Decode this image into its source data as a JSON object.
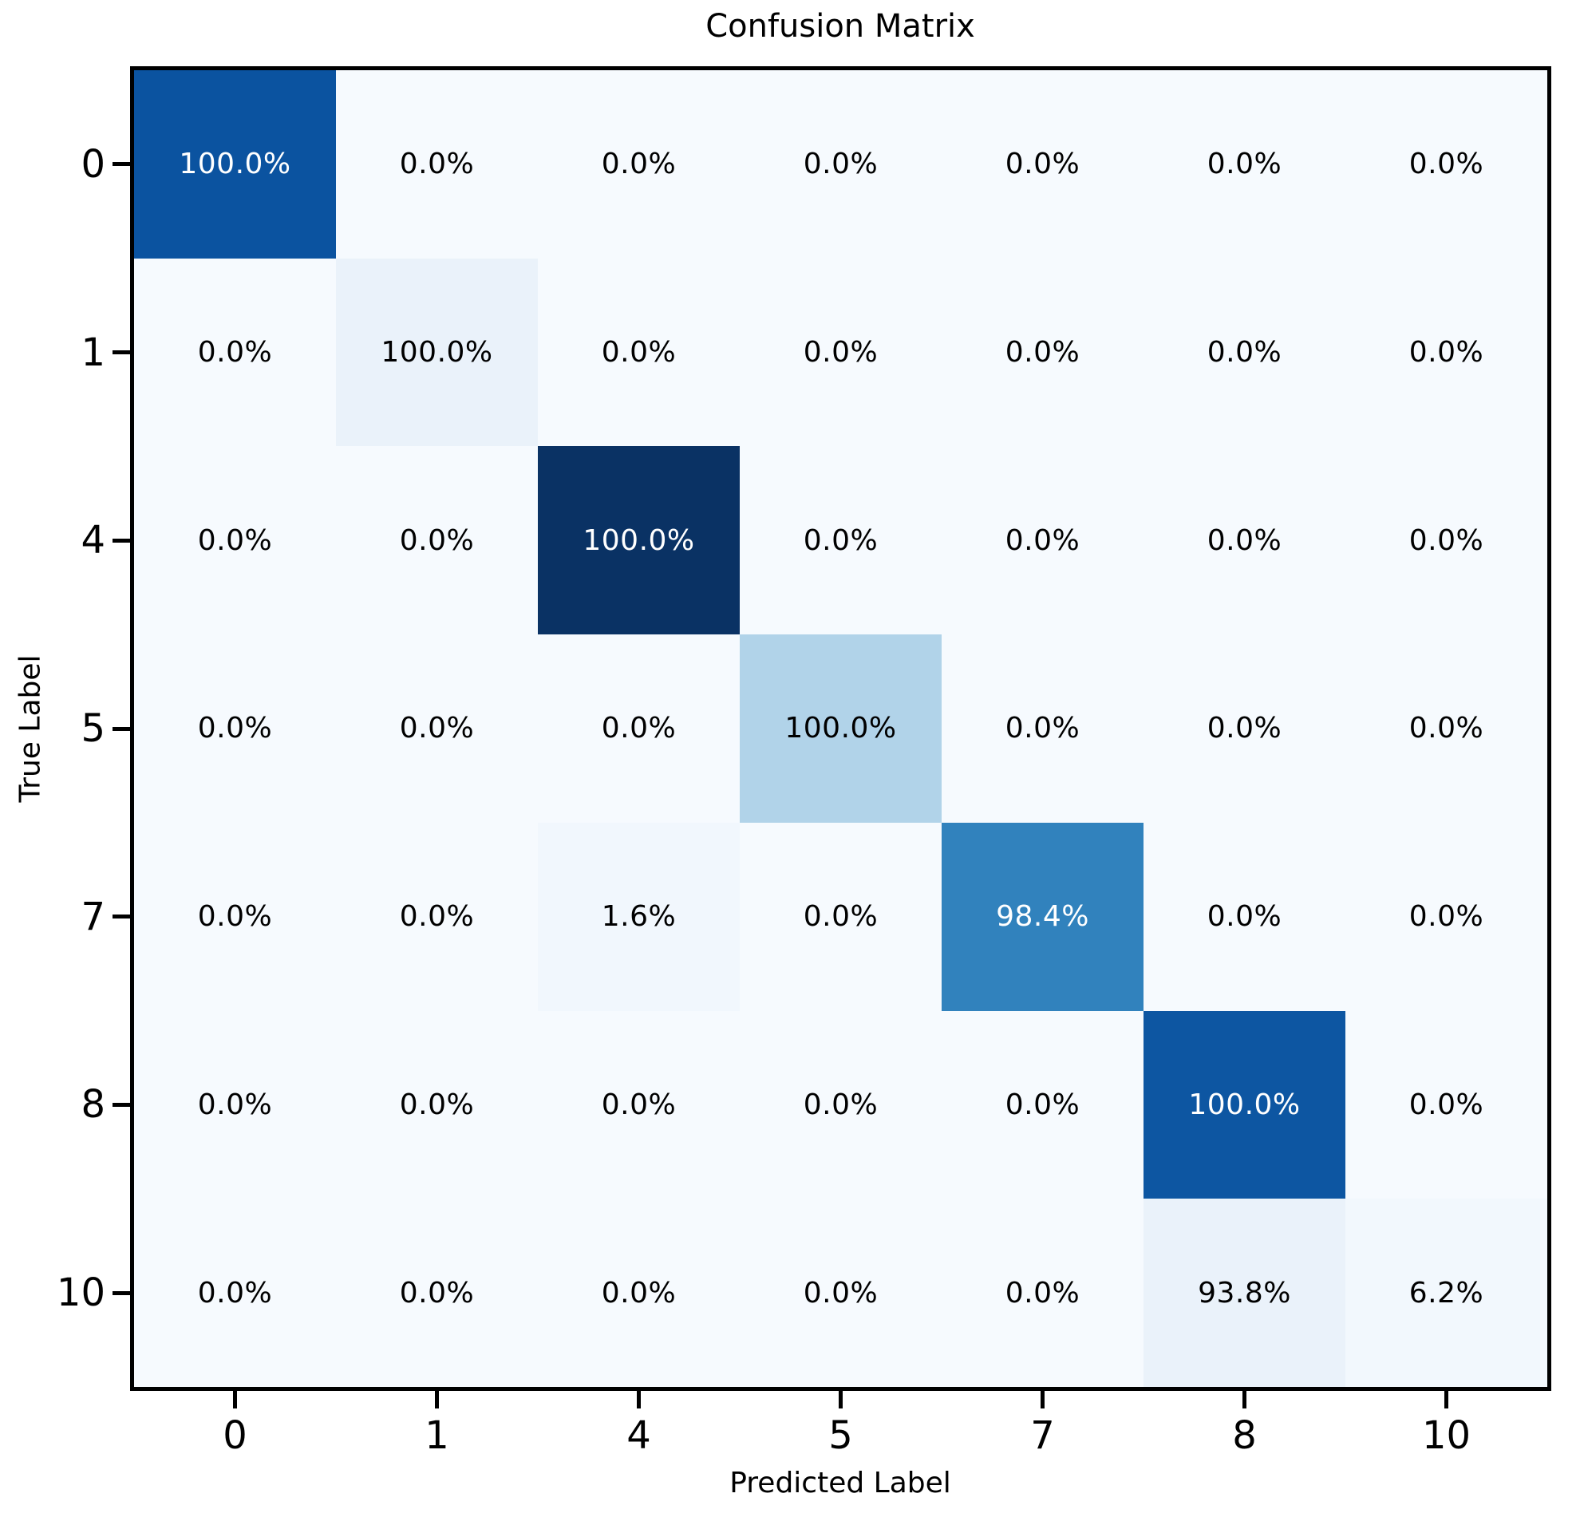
{
  "chart_data": {
    "type": "heatmap",
    "title": "Confusion Matrix",
    "xlabel": "Predicted Label",
    "ylabel": "True Label",
    "x_tick_labels": [
      "0",
      "1",
      "4",
      "5",
      "7",
      "8",
      "10"
    ],
    "y_tick_labels": [
      "0",
      "1",
      "4",
      "5",
      "7",
      "8",
      "10"
    ],
    "cell_labels": [
      [
        "100.0%",
        "0.0%",
        "0.0%",
        "0.0%",
        "0.0%",
        "0.0%",
        "0.0%"
      ],
      [
        "0.0%",
        "100.0%",
        "0.0%",
        "0.0%",
        "0.0%",
        "0.0%",
        "0.0%"
      ],
      [
        "0.0%",
        "0.0%",
        "100.0%",
        "0.0%",
        "0.0%",
        "0.0%",
        "0.0%"
      ],
      [
        "0.0%",
        "0.0%",
        "0.0%",
        "100.0%",
        "0.0%",
        "0.0%",
        "0.0%"
      ],
      [
        "0.0%",
        "0.0%",
        "1.6%",
        "0.0%",
        "98.4%",
        "0.0%",
        "0.0%"
      ],
      [
        "0.0%",
        "0.0%",
        "0.0%",
        "0.0%",
        "0.0%",
        "100.0%",
        "0.0%"
      ],
      [
        "0.0%",
        "0.0%",
        "0.0%",
        "0.0%",
        "0.0%",
        "93.8%",
        "6.2%"
      ]
    ],
    "cell_values_percent": [
      [
        100.0,
        0.0,
        0.0,
        0.0,
        0.0,
        0.0,
        0.0
      ],
      [
        0.0,
        100.0,
        0.0,
        0.0,
        0.0,
        0.0,
        0.0
      ],
      [
        0.0,
        0.0,
        100.0,
        0.0,
        0.0,
        0.0,
        0.0
      ],
      [
        0.0,
        0.0,
        0.0,
        100.0,
        0.0,
        0.0,
        0.0
      ],
      [
        0.0,
        0.0,
        1.6,
        0.0,
        98.4,
        0.0,
        0.0
      ],
      [
        0.0,
        0.0,
        0.0,
        0.0,
        0.0,
        100.0,
        0.0
      ],
      [
        0.0,
        0.0,
        0.0,
        0.0,
        0.0,
        93.8,
        6.2
      ]
    ],
    "cell_colors": [
      [
        "#0b53a0",
        "#f6fafe",
        "#f6fafe",
        "#f6fafe",
        "#f6fafe",
        "#f6fafe",
        "#f6fafe"
      ],
      [
        "#f6fafe",
        "#eaf2fa",
        "#f6fafe",
        "#f6fafe",
        "#f6fafe",
        "#f6fafe",
        "#f6fafe"
      ],
      [
        "#f6fafe",
        "#f6fafe",
        "#0a3264",
        "#f6fafe",
        "#f6fafe",
        "#f6fafe",
        "#f6fafe"
      ],
      [
        "#f6fafe",
        "#f6fafe",
        "#f6fafe",
        "#b1d3e9",
        "#f6fafe",
        "#f6fafe",
        "#f6fafe"
      ],
      [
        "#f6fafe",
        "#f6fafe",
        "#f1f7fd",
        "#f6fafe",
        "#3182bd",
        "#f6fafe",
        "#f6fafe"
      ],
      [
        "#f6fafe",
        "#f6fafe",
        "#f6fafe",
        "#f6fafe",
        "#f6fafe",
        "#0d56a2",
        "#f6fafe"
      ],
      [
        "#f6fafe",
        "#f6fafe",
        "#f6fafe",
        "#f6fafe",
        "#f6fafe",
        "#eaf2fa",
        "#f2f8fd"
      ]
    ],
    "cell_text_colors": [
      [
        "#ffffff",
        "#000000",
        "#000000",
        "#000000",
        "#000000",
        "#000000",
        "#000000"
      ],
      [
        "#000000",
        "#000000",
        "#000000",
        "#000000",
        "#000000",
        "#000000",
        "#000000"
      ],
      [
        "#000000",
        "#000000",
        "#ffffff",
        "#000000",
        "#000000",
        "#000000",
        "#000000"
      ],
      [
        "#000000",
        "#000000",
        "#000000",
        "#000000",
        "#000000",
        "#000000",
        "#000000"
      ],
      [
        "#000000",
        "#000000",
        "#000000",
        "#000000",
        "#ffffff",
        "#000000",
        "#000000"
      ],
      [
        "#000000",
        "#000000",
        "#000000",
        "#000000",
        "#000000",
        "#ffffff",
        "#000000"
      ],
      [
        "#000000",
        "#000000",
        "#000000",
        "#000000",
        "#000000",
        "#000000",
        "#000000"
      ]
    ],
    "plot_background": "#f6fafe",
    "spine_color": "#000000",
    "colormap_hint": "Blues",
    "grid": false,
    "legend": false
  }
}
